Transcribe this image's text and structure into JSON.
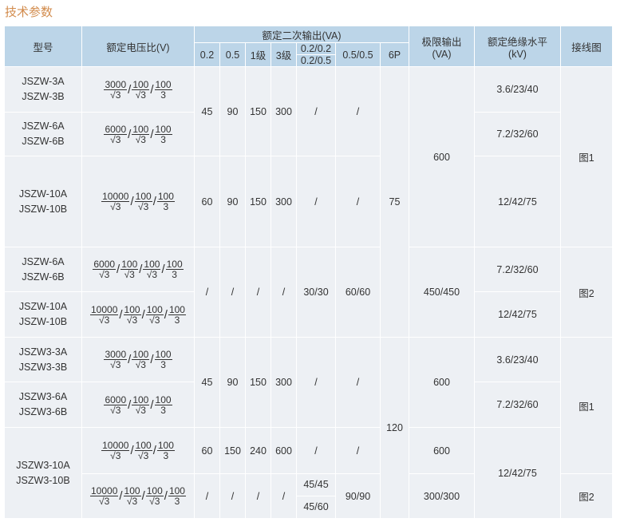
{
  "title": "技术参数",
  "header": {
    "model": "型号",
    "ratio": "额定电压比(V)",
    "secondary": "额定二次输出(VA)",
    "sub": [
      "0.2",
      "0.5",
      "1级",
      "3级",
      [
        "0.2/0.2",
        "0.2/0.5"
      ],
      "0.5/0.5",
      "6P"
    ],
    "limit": [
      "极限输出",
      "(VA)"
    ],
    "insulation": [
      "额定绝缘水平",
      "(kV)"
    ],
    "wiring": "接线图"
  },
  "rows": [
    {
      "cells": [
        {
          "t": [
            "JSZW-3A",
            "JSZW-3B"
          ]
        },
        {
          "f": [
            [
              "3000",
              "√3"
            ],
            [
              "100",
              "√3"
            ],
            [
              "100",
              "3"
            ]
          ]
        },
        {
          "t": "45",
          "rs": 2
        },
        {
          "t": "90",
          "rs": 2
        },
        {
          "t": "150",
          "rs": 2
        },
        {
          "t": "300",
          "rs": 2
        },
        {
          "t": "/",
          "rs": 2
        },
        {
          "t": "/",
          "rs": 2
        },
        {
          "t": "75",
          "rs": 5
        },
        {
          "t": "600",
          "rs": 3
        },
        {
          "t": "3.6/23/40"
        },
        {
          "t": "图1",
          "rs": 3
        }
      ]
    },
    {
      "cells": [
        {
          "t": [
            "JSZW-6A",
            "JSZW-6B"
          ]
        },
        {
          "f": [
            [
              "6000",
              "√3"
            ],
            [
              "100",
              "√3"
            ],
            [
              "100",
              "3"
            ]
          ]
        },
        {
          "t": "7.2/32/60"
        }
      ]
    },
    {
      "cells": [
        {
          "t": [
            "JSZW-10A",
            "JSZW-10B"
          ]
        },
        {
          "f": [
            [
              "10000",
              "√3"
            ],
            [
              "100",
              "√3"
            ],
            [
              "100",
              "3"
            ]
          ]
        },
        {
          "t": "60"
        },
        {
          "t": "90"
        },
        {
          "t": "150"
        },
        {
          "t": "300"
        },
        {
          "t": "/"
        },
        {
          "t": "/"
        },
        {
          "t": "12/42/75"
        }
      ]
    },
    {
      "cells": [
        {
          "t": [
            "JSZW-6A",
            "JSZW-6B"
          ]
        },
        {
          "f": [
            [
              "6000",
              "√3"
            ],
            [
              "100",
              "√3"
            ],
            [
              "100",
              "√3"
            ],
            [
              "100",
              "3"
            ]
          ]
        },
        {
          "t": "/",
          "rs": 2
        },
        {
          "t": "/",
          "rs": 2
        },
        {
          "t": "/",
          "rs": 2
        },
        {
          "t": "/",
          "rs": 2
        },
        {
          "t": "30/30",
          "rs": 2
        },
        {
          "t": "60/60",
          "rs": 2
        },
        {
          "t": "450/450",
          "rs": 2
        },
        {
          "t": "7.2/32/60"
        },
        {
          "t": "图2",
          "rs": 2
        }
      ]
    },
    {
      "cells": [
        {
          "t": [
            "JSZW-10A",
            "JSZW-10B"
          ]
        },
        {
          "f": [
            [
              "10000",
              "√3"
            ],
            [
              "100",
              "√3"
            ],
            [
              "100",
              "√3"
            ],
            [
              "100",
              "3"
            ]
          ]
        },
        {
          "t": "12/42/75"
        }
      ]
    },
    {
      "cells": [
        {
          "t": [
            "JSZW3-3A",
            "JSZW3-3B"
          ]
        },
        {
          "f": [
            [
              "3000",
              "√3"
            ],
            [
              "100",
              "√3"
            ],
            [
              "100",
              "3"
            ]
          ]
        },
        {
          "t": "45",
          "rs": 2
        },
        {
          "t": "90",
          "rs": 2
        },
        {
          "t": "150",
          "rs": 2
        },
        {
          "t": "300",
          "rs": 2
        },
        {
          "t": "/",
          "rs": 2
        },
        {
          "t": "/",
          "rs": 2
        },
        {
          "t": "120",
          "rs": 4
        },
        {
          "t": "600",
          "rs": 2
        },
        {
          "t": "3.6/23/40"
        },
        {
          "t": "图1",
          "rs": 3
        }
      ]
    },
    {
      "cells": [
        {
          "t": [
            "JSZW3-6A",
            "JSZW3-6B"
          ]
        },
        {
          "f": [
            [
              "6000",
              "√3"
            ],
            [
              "100",
              "√3"
            ],
            [
              "100",
              "3"
            ]
          ]
        },
        {
          "t": "7.2/32/60"
        }
      ]
    },
    {
      "cells": [
        {
          "t": [
            "JSZW3-10A",
            "JSZW3-10B"
          ],
          "rs": 2
        },
        {
          "f": [
            [
              "10000",
              "√3"
            ],
            [
              "100",
              "√3"
            ],
            [
              "100",
              "3"
            ]
          ]
        },
        {
          "t": "60"
        },
        {
          "t": "150"
        },
        {
          "t": "240"
        },
        {
          "t": "600"
        },
        {
          "t": "/"
        },
        {
          "t": "/"
        },
        {
          "t": "600"
        },
        {
          "t": "12/42/75",
          "rs": 2
        }
      ]
    },
    {
      "cells": [
        {
          "f": [
            [
              "10000",
              "√3"
            ],
            [
              "100",
              "√3"
            ],
            [
              "100",
              "√3"
            ],
            [
              "100",
              "3"
            ]
          ]
        },
        {
          "t": "/"
        },
        {
          "t": "/"
        },
        {
          "t": "/"
        },
        {
          "t": "/"
        },
        {
          "t": [
            "45/45",
            "45/60"
          ],
          "split": true
        },
        {
          "t": "90/90"
        },
        {
          "t": "300/300"
        },
        {
          "t": "图2"
        }
      ]
    }
  ]
}
